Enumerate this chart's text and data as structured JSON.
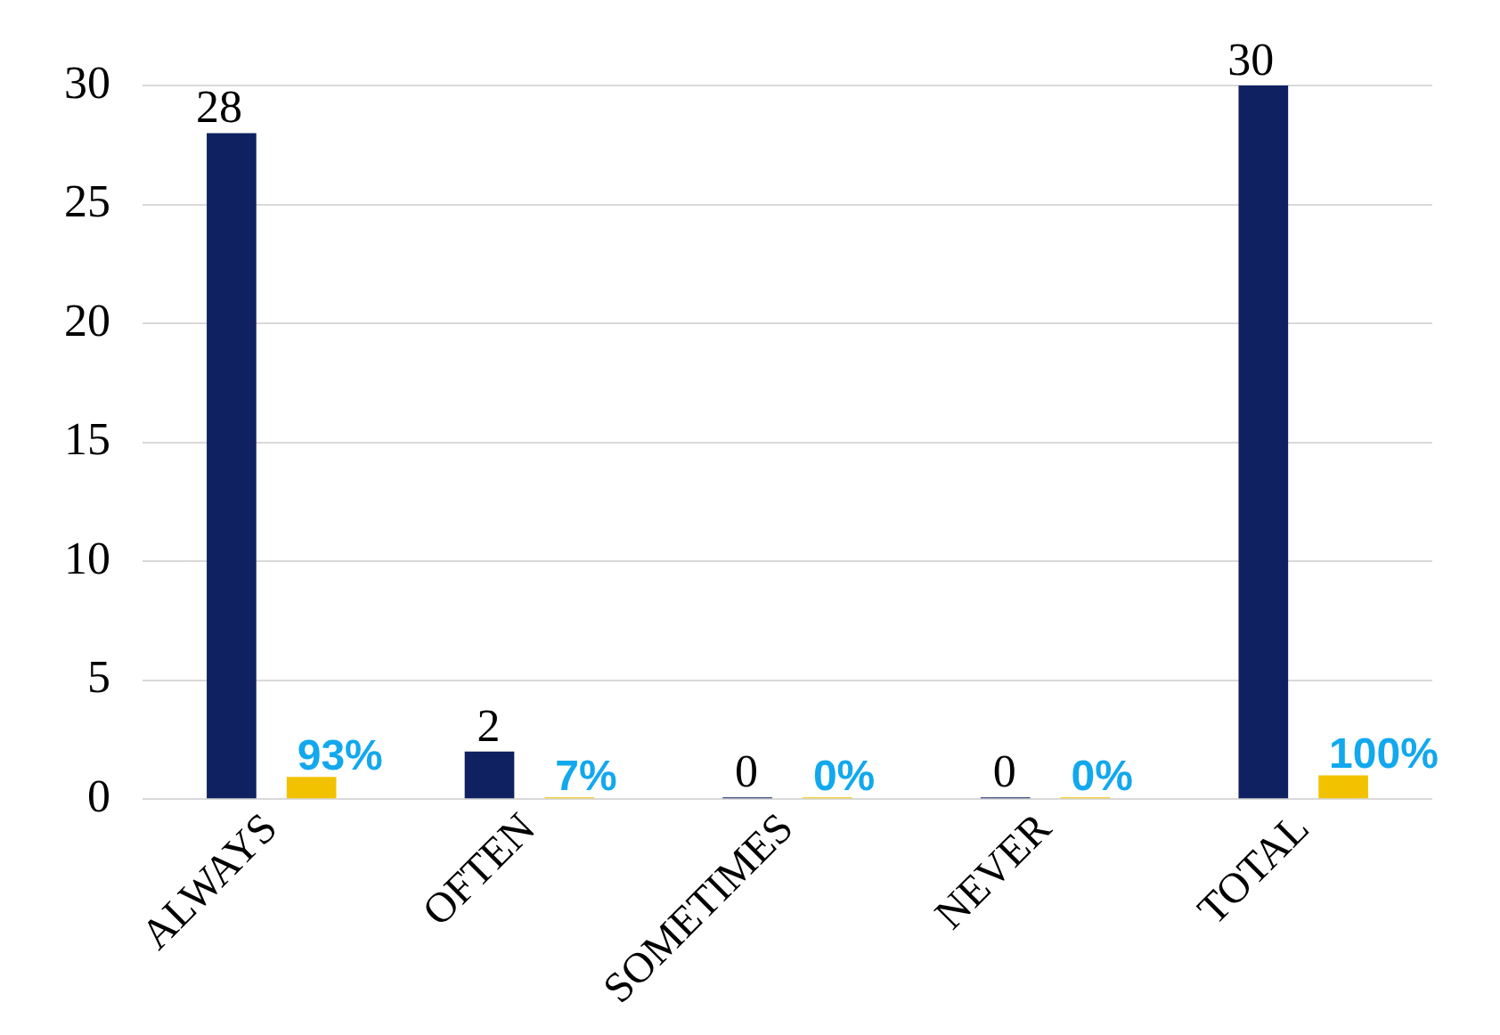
{
  "chart_data": {
    "type": "bar",
    "categories": [
      "ALWAYS",
      "OFTEN",
      "SOMETIMES",
      "NEVER",
      "TOTAL"
    ],
    "series": [
      {
        "color": "#0f2160",
        "values": [
          28,
          2,
          0,
          0,
          30
        ],
        "value_labels": [
          "28",
          "2",
          "0",
          "0",
          "30"
        ]
      },
      {
        "color": "#f2c200",
        "values": [
          0.93,
          0.07,
          0,
          0,
          1
        ],
        "value_labels": [
          "93%",
          "7%",
          "0%",
          "0%",
          "100%"
        ]
      }
    ],
    "ylim": [
      0,
      30
    ],
    "yticks": [
      0,
      5,
      10,
      15,
      20,
      25,
      30
    ],
    "grid": "y",
    "legend": false
  }
}
